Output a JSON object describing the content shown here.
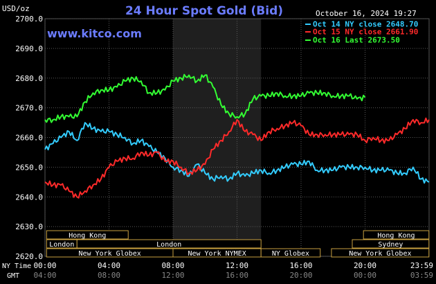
{
  "header": {
    "units": "USD/oz",
    "title": "24 Hour Spot Gold (Bid)",
    "datetime": "October 16, 2024 19:27",
    "watermark": "www.kitco.com"
  },
  "legend": [
    {
      "text": "Oct 14 NY close 2648.70",
      "color": "#33ccff"
    },
    {
      "text": "Oct 15 NY close 2661.90",
      "color": "#ff2a2a"
    },
    {
      "text": "Oct 16 Last 2673.50",
      "color": "#33ff33"
    }
  ],
  "chart_data": {
    "type": "line",
    "title": "24 Hour Spot Gold (Bid)",
    "ylabel": "USD/oz",
    "ylim": [
      2620,
      2700
    ],
    "yticks": [
      "2700.0",
      "2690.0",
      "2680.0",
      "2670.0",
      "2660.0",
      "2650.0",
      "2640.0",
      "2630.0",
      "2620.0"
    ],
    "xlim": [
      0,
      24
    ],
    "xticks_ny": [
      "00:00",
      "04:00",
      "08:00",
      "12:00",
      "16:00",
      "20:00",
      "23:59"
    ],
    "xticks_gmt": [
      "04:00",
      "08:00",
      "12:00",
      "16:00",
      "20:00",
      "00:00",
      "03:59"
    ],
    "xlabel_ny": "NY Time",
    "xlabel_gmt": "GMT",
    "grid": true,
    "series": [
      {
        "name": "Oct 14 NY close 2648.70",
        "color": "#33ccff",
        "x": [
          0,
          0.5,
          1,
          1.5,
          2,
          2.5,
          3,
          3.5,
          4,
          4.5,
          5,
          5.5,
          6,
          6.5,
          7,
          7.5,
          8,
          8.5,
          9,
          9.5,
          10,
          10.5,
          11,
          11.5,
          12,
          12.5,
          13,
          13.5,
          14,
          14.5,
          15,
          15.5,
          16,
          16.5,
          17,
          17.5,
          18,
          18.5,
          19,
          19.5,
          20,
          20.5,
          21,
          21.5,
          22,
          22.5,
          23,
          23.5,
          24
        ],
        "values": [
          2656,
          2658,
          2660,
          2662,
          2659,
          2665,
          2663,
          2662,
          2662,
          2661,
          2660,
          2658,
          2659,
          2657,
          2655,
          2653,
          2650,
          2649,
          2647,
          2651,
          2648,
          2646,
          2647,
          2646,
          2648,
          2647,
          2648,
          2649,
          2648,
          2649,
          2650,
          2651,
          2651,
          2652,
          2649,
          2649,
          2649,
          2650,
          2650,
          2650,
          2650,
          2649,
          2649,
          2649,
          2648,
          2648,
          2650,
          2646,
          2645
        ]
      },
      {
        "name": "Oct 15 NY close 2661.90",
        "color": "#ff2a2a",
        "x": [
          0,
          0.5,
          1,
          1.5,
          2,
          2.5,
          3,
          3.5,
          4,
          4.5,
          5,
          5.5,
          6,
          6.5,
          7,
          7.5,
          8,
          8.5,
          9,
          9.5,
          10,
          10.5,
          11,
          11.5,
          12,
          12.5,
          13,
          13.5,
          14,
          14.5,
          15,
          15.5,
          16,
          16.5,
          17,
          17.5,
          18,
          18.5,
          19,
          19.5,
          20,
          20.5,
          21,
          21.5,
          22,
          22.5,
          23,
          23.5,
          24
        ],
        "values": [
          2645,
          2644,
          2644,
          2642,
          2640,
          2642,
          2644,
          2646,
          2650,
          2652,
          2653,
          2653,
          2655,
          2654,
          2655,
          2652,
          2652,
          2650,
          2648,
          2649,
          2651,
          2656,
          2659,
          2662,
          2666,
          2662,
          2661,
          2659,
          2662,
          2663,
          2664,
          2665,
          2664,
          2661,
          2661,
          2661,
          2661,
          2661,
          2661,
          2661,
          2659,
          2660,
          2659,
          2659,
          2661,
          2663,
          2666,
          2665,
          2666
        ]
      },
      {
        "name": "Oct 16 Last 2673.50",
        "color": "#33ff33",
        "x": [
          0,
          0.5,
          1,
          1.5,
          2,
          2.5,
          3,
          3.5,
          4,
          4.5,
          5,
          5.5,
          6,
          6.5,
          7,
          7.5,
          8,
          8.5,
          9,
          9.5,
          10,
          10.5,
          11,
          11.5,
          12,
          12.5,
          13,
          13.5,
          14,
          14.5,
          15,
          15.5,
          16,
          16.5,
          17,
          17.5,
          18,
          18.5,
          19,
          19.5,
          20
        ],
        "values": [
          2666,
          2666,
          2667,
          2667,
          2667,
          2672,
          2675,
          2676,
          2676,
          2677,
          2679,
          2680,
          2679,
          2675,
          2675,
          2676,
          2679,
          2680,
          2681,
          2679,
          2681,
          2677,
          2671,
          2668,
          2667,
          2668,
          2673,
          2674,
          2674,
          2675,
          2674,
          2674,
          2674,
          2675,
          2675,
          2675,
          2674,
          2674,
          2674,
          2673,
          2673.5
        ]
      }
    ]
  },
  "sessions": {
    "row1": [
      {
        "label": "Hong Kong",
        "start": 0.1,
        "end": 5.2
      },
      {
        "label": "Hong Kong",
        "start": 19.9,
        "end": 23.99
      }
    ],
    "row2": [
      {
        "label": "London",
        "start": 0.1,
        "end": 2.0
      },
      {
        "label": "London",
        "start": 2.0,
        "end": 13.5
      },
      {
        "label": "Sydney",
        "start": 19.2,
        "end": 23.99
      }
    ],
    "row3": [
      {
        "label": "New York Globex",
        "start": 0.1,
        "end": 8.0
      },
      {
        "label": "New York NYMEX",
        "start": 8.0,
        "end": 13.5
      },
      {
        "label": "NY Globex",
        "start": 13.5,
        "end": 17.2
      },
      {
        "label": "New York Globex",
        "start": 17.9,
        "end": 23.99
      }
    ]
  },
  "nymex_shade": {
    "start": 8.0,
    "end": 13.5
  }
}
